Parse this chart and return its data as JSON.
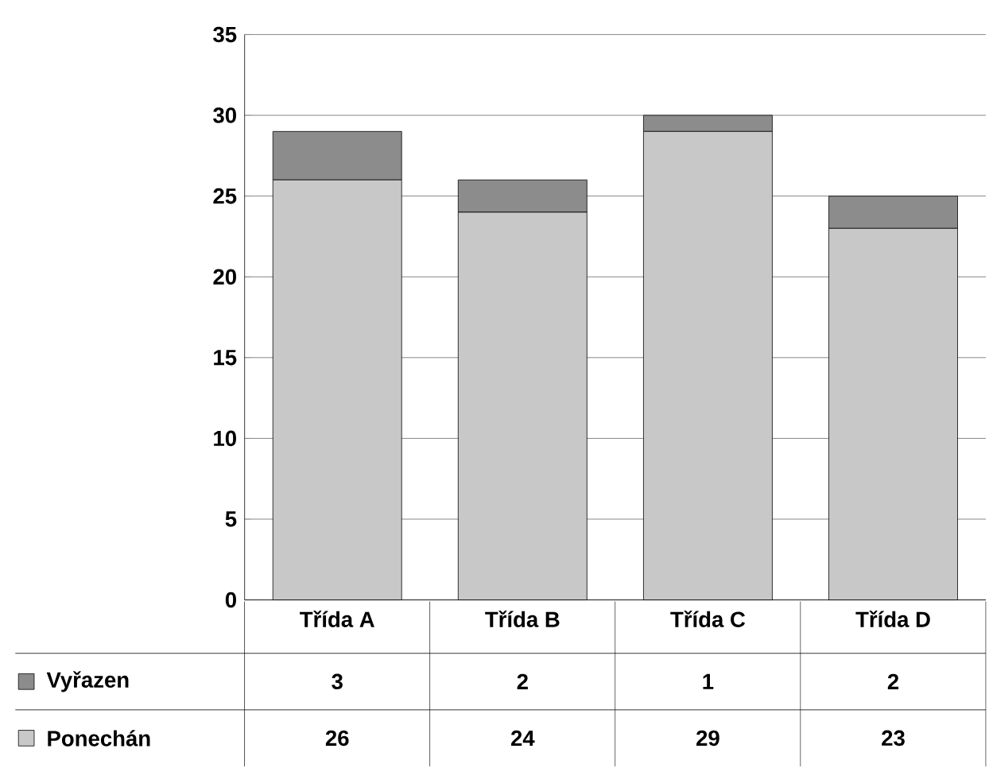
{
  "chart_data": {
    "type": "bar",
    "stacked": true,
    "categories": [
      "Třída A",
      "Třída B",
      "Třída C",
      "Třída D"
    ],
    "series": [
      {
        "name": "Ponechán",
        "color": "#c8c8c8",
        "values": [
          26,
          24,
          29,
          23
        ],
        "value_labels": [
          "26",
          "24",
          "29",
          "23"
        ]
      },
      {
        "name": "Vyřazen",
        "color": "#8c8c8c",
        "values": [
          3,
          2,
          1,
          2
        ],
        "value_labels": [
          "3",
          "2",
          "1",
          "2"
        ]
      }
    ],
    "ylim": [
      0,
      35
    ],
    "yticks": [
      0,
      5,
      10,
      15,
      20,
      25,
      30,
      35
    ],
    "grid": "y",
    "legend": "bottom left"
  }
}
